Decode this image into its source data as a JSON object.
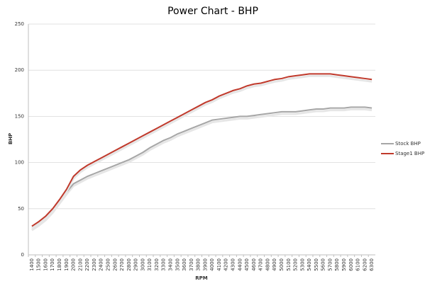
{
  "chart_data": {
    "type": "line",
    "title": "Power Chart - BHP",
    "x_label": "RPM",
    "y_label": "BHP",
    "categories": [
      "1400",
      "1500",
      "1600",
      "1700",
      "1800",
      "1900",
      "2000",
      "2100",
      "2200",
      "2300",
      "2400",
      "2500",
      "2600",
      "2700",
      "2800",
      "2900",
      "3000",
      "3100",
      "3200",
      "3300",
      "3400",
      "3500",
      "3600",
      "3700",
      "3800",
      "3900",
      "4000",
      "4100",
      "4200",
      "4300",
      "4400",
      "4500",
      "4600",
      "4700",
      "4800",
      "4900",
      "5000",
      "5100",
      "5200",
      "5300",
      "5400",
      "5500",
      "5600",
      "5700",
      "5800",
      "5900",
      "6000",
      "6100",
      "6200",
      "6300"
    ],
    "series": [
      {
        "name": "Stock BHP",
        "color": "#a6a6a6",
        "values": [
          29,
          34,
          40,
          48,
          58,
          68,
          77,
          81,
          85,
          88,
          91,
          94,
          97,
          100,
          103,
          107,
          111,
          116,
          120,
          124,
          127,
          131,
          134,
          137,
          140,
          143,
          146,
          147,
          148,
          149,
          150,
          150,
          151,
          152,
          153,
          154,
          155,
          155,
          155,
          156,
          157,
          158,
          158,
          159,
          159,
          159,
          160,
          160,
          160,
          159
        ]
      },
      {
        "name": "Stage1 BHP",
        "color": "#c0392b",
        "values": [
          31,
          36,
          42,
          50,
          60,
          71,
          85,
          92,
          97,
          101,
          105,
          109,
          113,
          117,
          121,
          125,
          129,
          133,
          137,
          141,
          145,
          149,
          153,
          157,
          161,
          165,
          168,
          172,
          175,
          178,
          180,
          183,
          185,
          186,
          188,
          190,
          191,
          193,
          194,
          195,
          196,
          196,
          196,
          196,
          195,
          194,
          193,
          192,
          191,
          190
        ]
      }
    ],
    "ylim": [
      0,
      250
    ],
    "yticks": [
      0,
      50,
      100,
      150,
      200,
      250
    ],
    "grid": true,
    "legend": "right"
  }
}
